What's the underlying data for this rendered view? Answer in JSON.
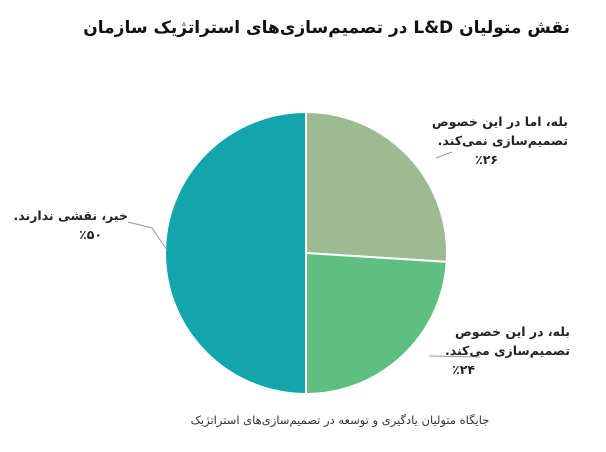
{
  "title": "نقش متولیان L&D در تصمیم‌سازی‌های استراتژیک سازمان",
  "caption": "جایگاه متولیان یادگیری و توسعه در تصمیم‌سازی‌های استراتژیک",
  "chart_data": {
    "type": "pie",
    "title": "نقش متولیان L&D در تصمیم‌سازی‌های استراتژیک سازمان",
    "slices": [
      {
        "label": "بله، اما در این خصوص تصمیم‌سازی نمی‌کند.",
        "label_line1": "بله، اما در این خصوص",
        "label_line2": "تصمیم‌سازی نمی‌کند.",
        "value": 26,
        "value_text": "٪۲۶",
        "color": "#9dbb93"
      },
      {
        "label": "بله، در این خصوص تصمیم‌سازی می‌کند.",
        "label_line1": "بله، در این خصوص",
        "label_line2": "تصمیم‌سازی می‌کند.",
        "value": 24,
        "value_text": "٪۲۴",
        "color": "#5fbf80"
      },
      {
        "label": "خیر، نقشی ندارند.",
        "label_line1": "خیر، نقشی ندارند.",
        "label_line2": "",
        "value": 50,
        "value_text": "٪۵۰",
        "color": "#12a5ac"
      }
    ]
  }
}
